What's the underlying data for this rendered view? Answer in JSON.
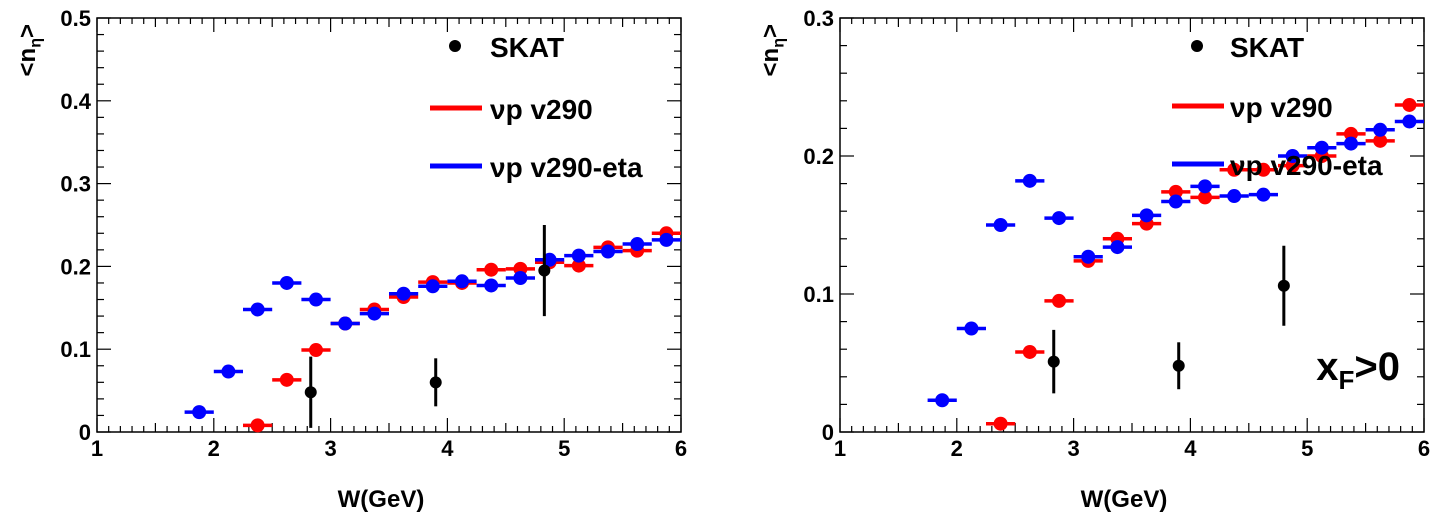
{
  "colors": {
    "mc_default": "#ff0000",
    "mc_eta": "#0000ff",
    "data": "#000000"
  },
  "chart_data": [
    {
      "type": "scatter",
      "xlabel": "W(GeV)",
      "ylabel": "<n_η>",
      "xlim": [
        1,
        6
      ],
      "ylim": [
        0,
        0.5
      ],
      "x_ticks": [
        "1",
        "2",
        "3",
        "4",
        "5",
        "6"
      ],
      "y_ticks": [
        "0",
        "0.1",
        "0.2",
        "0.3",
        "0.4",
        "0.5"
      ],
      "y_tick_values": [
        0,
        0.1,
        0.2,
        0.3,
        0.4,
        0.5
      ],
      "grid": false,
      "legend_position": "top-right",
      "legend": [
        {
          "label": "SKAT",
          "marker": "dot",
          "color": "#000000"
        },
        {
          "label": "νp v290",
          "marker": "line",
          "color": "#ff0000"
        },
        {
          "label": "νp v290-eta",
          "marker": "line",
          "color": "#0000ff"
        }
      ],
      "annotation": "",
      "series": [
        {
          "name": "νp v290",
          "color": "#ff0000",
          "x_halfwidth": 0.125,
          "x": [
            2.375,
            2.625,
            2.875,
            3.125,
            3.375,
            3.625,
            3.875,
            4.125,
            4.375,
            4.625,
            4.875,
            5.125,
            5.375,
            5.625,
            5.875
          ],
          "y": [
            0.008,
            0.063,
            0.099,
            0.131,
            0.148,
            0.163,
            0.181,
            0.18,
            0.196,
            0.197,
            0.205,
            0.201,
            0.223,
            0.219,
            0.24
          ]
        },
        {
          "name": "νp v290-eta",
          "color": "#0000ff",
          "x_halfwidth": 0.125,
          "x": [
            1.875,
            2.125,
            2.375,
            2.625,
            2.875,
            3.125,
            3.375,
            3.625,
            3.875,
            4.125,
            4.375,
            4.625,
            4.875,
            5.125,
            5.375,
            5.625,
            5.875
          ],
          "y": [
            0.024,
            0.073,
            0.148,
            0.18,
            0.16,
            0.131,
            0.143,
            0.167,
            0.176,
            0.182,
            0.177,
            0.186,
            0.208,
            0.213,
            0.218,
            0.227,
            0.232
          ]
        },
        {
          "name": "SKAT",
          "color": "#000000",
          "errorbars": true,
          "x": [
            2.83,
            3.9,
            4.83
          ],
          "y": [
            0.048,
            0.06,
            0.195
          ],
          "yerr": [
            0.043,
            0.029,
            0.055
          ]
        }
      ]
    },
    {
      "type": "scatter",
      "xlabel": "W(GeV)",
      "ylabel": "<n_η>",
      "xlim": [
        1,
        6
      ],
      "ylim": [
        0,
        0.3
      ],
      "x_ticks": [
        "1",
        "2",
        "3",
        "4",
        "5",
        "6"
      ],
      "y_ticks": [
        "0",
        "0.1",
        "0.2",
        "0.3"
      ],
      "y_tick_values": [
        0,
        0.1,
        0.2,
        0.3
      ],
      "grid": false,
      "legend_position": "top-right",
      "legend": [
        {
          "label": "SKAT",
          "marker": "dot",
          "color": "#000000"
        },
        {
          "label": "νp v290",
          "marker": "line",
          "color": "#ff0000"
        },
        {
          "label": "νp v290-eta",
          "marker": "line",
          "color": "#0000ff"
        }
      ],
      "annotation": "x_F>0",
      "series": [
        {
          "name": "νp v290",
          "color": "#ff0000",
          "x_halfwidth": 0.125,
          "x": [
            2.375,
            2.625,
            2.875,
            3.125,
            3.375,
            3.625,
            3.875,
            4.125,
            4.375,
            4.625,
            4.875,
            5.125,
            5.375,
            5.625,
            5.875
          ],
          "y": [
            0.006,
            0.058,
            0.095,
            0.124,
            0.14,
            0.151,
            0.174,
            0.17,
            0.19,
            0.19,
            0.193,
            0.2,
            0.216,
            0.211,
            0.237
          ]
        },
        {
          "name": "νp v290-eta",
          "color": "#0000ff",
          "x_halfwidth": 0.125,
          "x": [
            1.875,
            2.125,
            2.375,
            2.625,
            2.875,
            3.125,
            3.375,
            3.625,
            3.875,
            4.125,
            4.375,
            4.625,
            4.875,
            5.125,
            5.375,
            5.625,
            5.875
          ],
          "y": [
            0.023,
            0.075,
            0.15,
            0.182,
            0.155,
            0.127,
            0.134,
            0.157,
            0.167,
            0.178,
            0.171,
            0.172,
            0.2,
            0.206,
            0.209,
            0.219,
            0.225
          ]
        },
        {
          "name": "SKAT",
          "color": "#000000",
          "errorbars": true,
          "x": [
            2.83,
            3.9,
            4.8
          ],
          "y": [
            0.051,
            0.048,
            0.106
          ],
          "yerr": [
            0.023,
            0.017,
            0.029
          ]
        }
      ]
    }
  ]
}
